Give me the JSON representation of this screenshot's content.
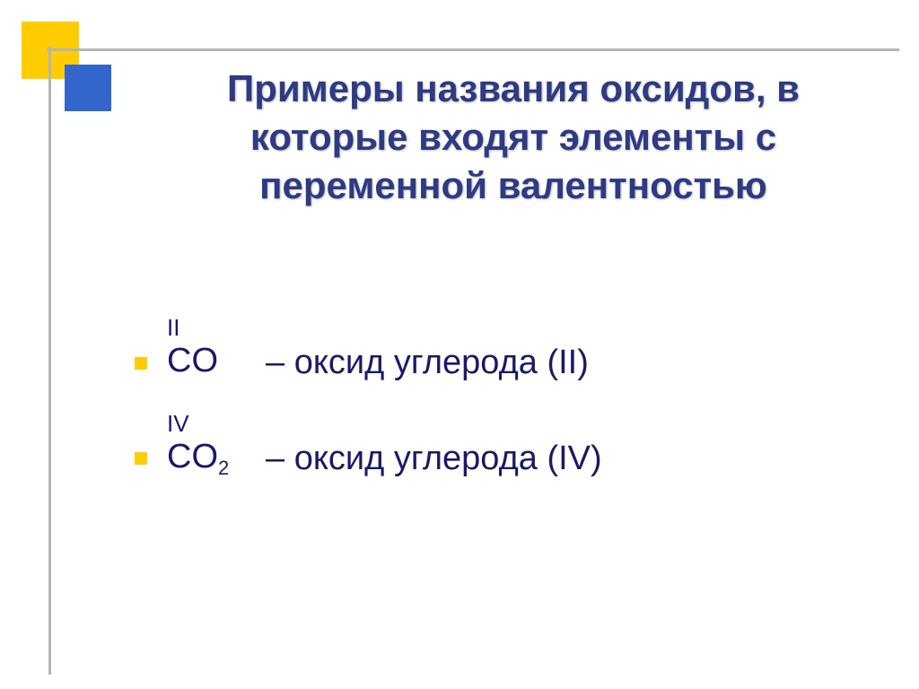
{
  "colors": {
    "yellow": "#ffcc00",
    "blue": "#3366cc",
    "dark_blue_text": "#2e3a82",
    "body_text": "#1a1a66",
    "line": "#b5b5b5"
  },
  "title": "Примеры названия оксидов, в которые входят элементы с переменной валентностью",
  "items": [
    {
      "valence": "II",
      "formula_base": "CO",
      "formula_sub": "",
      "description": "– оксид углерода (II)"
    },
    {
      "valence": "IV",
      "formula_base": "CO",
      "formula_sub": "2",
      "description": "– оксид углерода (IV)"
    }
  ],
  "typography": {
    "title_fontsize": 42,
    "body_fontsize": 38,
    "valence_fontsize": 26,
    "sub_fontsize": 22
  }
}
